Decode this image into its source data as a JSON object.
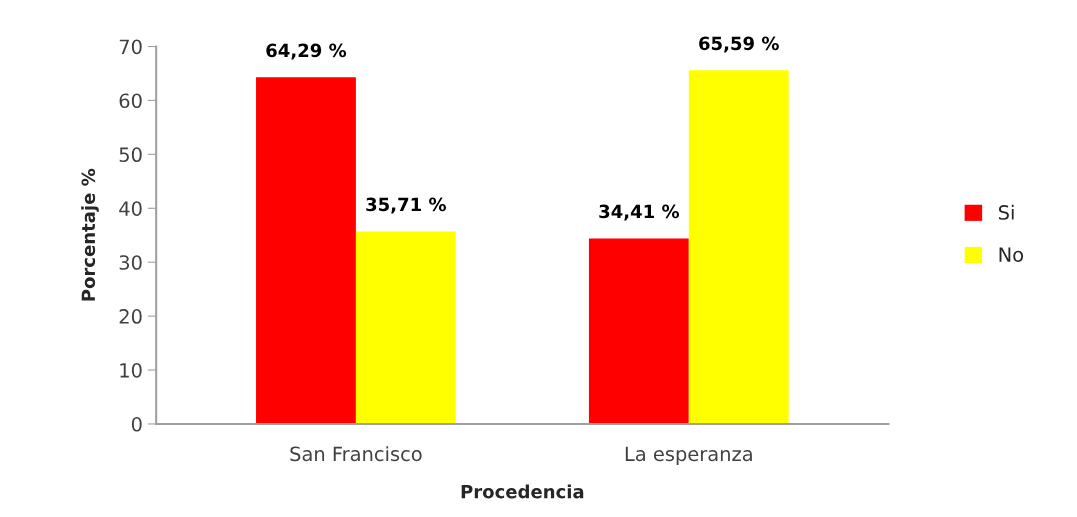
{
  "chart_data": {
    "type": "bar",
    "categories": [
      "San Francisco",
      "La esperanza"
    ],
    "series": [
      {
        "name": "Si",
        "color": "#ff0000",
        "values": [
          64.29,
          34.41
        ],
        "value_labels": [
          "64,29 %",
          "34,41 %"
        ]
      },
      {
        "name": "No",
        "color": "#ffff00",
        "values": [
          35.71,
          65.59
        ],
        "value_labels": [
          "35,71 %",
          "65,59 %"
        ]
      }
    ],
    "xlabel": "Procedencia",
    "ylabel": "Porcentaje %",
    "ylim": [
      0,
      70
    ],
    "yticks": [
      0,
      10,
      20,
      30,
      40,
      50,
      60,
      70
    ],
    "grid": false,
    "legend": "right"
  }
}
